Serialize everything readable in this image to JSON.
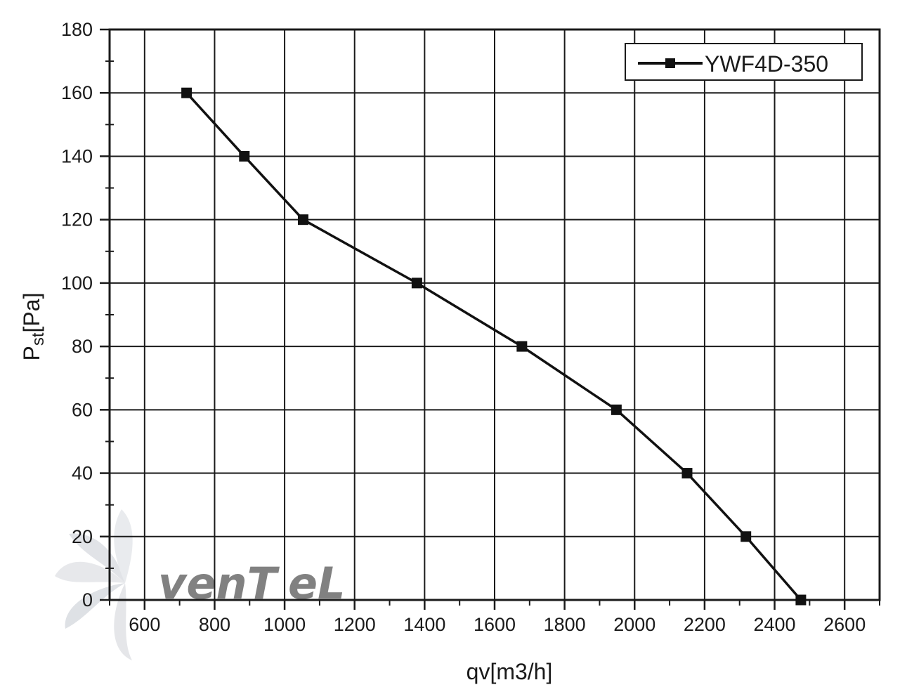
{
  "chart_data": {
    "type": "line",
    "xlabel": "qv[m3/h]",
    "ylabel_main": "P",
    "ylabel_sub": "st",
    "ylabel_tail": "[Pa]",
    "xlim": [
      500,
      2700
    ],
    "ylim": [
      0,
      180
    ],
    "x_ticks": [
      600,
      800,
      1000,
      1200,
      1400,
      1600,
      1800,
      2000,
      2200,
      2400,
      2600
    ],
    "y_ticks": [
      0,
      20,
      40,
      60,
      80,
      100,
      120,
      140,
      160,
      180
    ],
    "grid": true,
    "legend_position": "top-right",
    "series": [
      {
        "name": "YWF4D-350",
        "color": "#111111",
        "marker": "square",
        "x": [
          720,
          885,
          1053,
          1378,
          1678,
          1948,
          2150,
          2318,
          2475
        ],
        "y": [
          160,
          140,
          120,
          100,
          80,
          60,
          40,
          20,
          0
        ]
      }
    ]
  },
  "watermark": {
    "text_a": "venT",
    "text_b": "eL",
    "color_a": "#b9bec6",
    "color_b": "#a7c7e6"
  }
}
